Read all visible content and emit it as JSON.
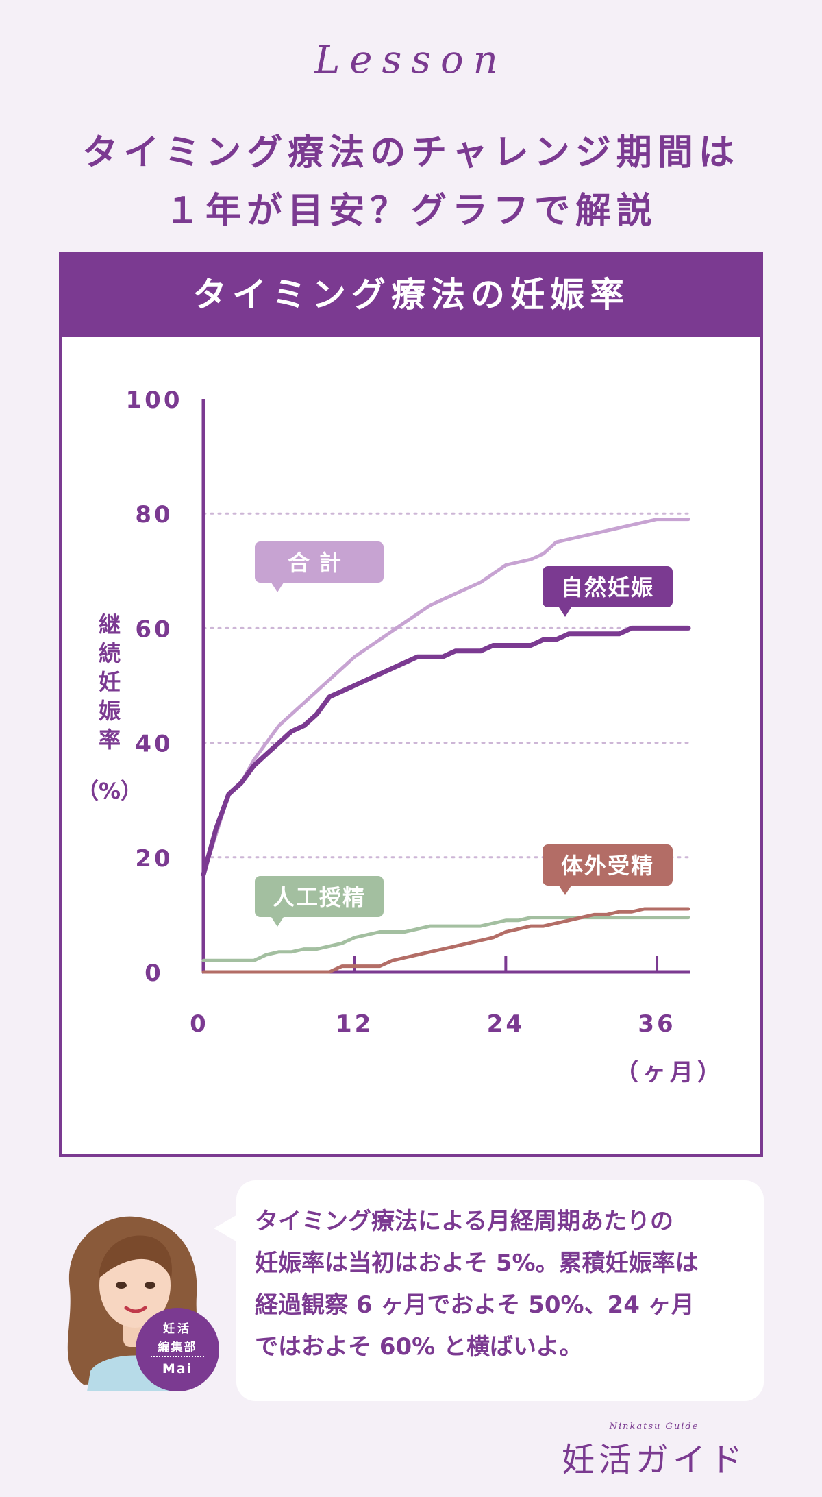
{
  "header": {
    "lesson": "Lesson",
    "title_line1": "タイミング療法のチャレンジ期間は",
    "title_line2": "１年が目安？グラフで解説"
  },
  "chart_data": {
    "type": "line",
    "title": "タイミング療法の妊娠率",
    "ylabel": "継続妊娠率",
    "ylabel_unit": "（%）",
    "xlabel": "（ヶ月）",
    "xlim": [
      0,
      38.5
    ],
    "ylim": [
      0,
      100
    ],
    "x_ticks": [
      0,
      12,
      24,
      36
    ],
    "y_ticks": [
      0,
      20,
      40,
      60,
      80,
      100
    ],
    "grid": "dotted horizontal at 20, 40, 60, 80",
    "series": [
      {
        "name": "合計",
        "color": "#c7a3d2",
        "points": [
          [
            0,
            17
          ],
          [
            1,
            24
          ],
          [
            2,
            31
          ],
          [
            3,
            33
          ],
          [
            4,
            37
          ],
          [
            5,
            40
          ],
          [
            6,
            43
          ],
          [
            8,
            47
          ],
          [
            10,
            51
          ],
          [
            12,
            55
          ],
          [
            14,
            58
          ],
          [
            16,
            61
          ],
          [
            18,
            64
          ],
          [
            20,
            66
          ],
          [
            22,
            68
          ],
          [
            24,
            71
          ],
          [
            26,
            72
          ],
          [
            27,
            73
          ],
          [
            28,
            75
          ],
          [
            30,
            76
          ],
          [
            32,
            77
          ],
          [
            34,
            78
          ],
          [
            36,
            79
          ],
          [
            37,
            79
          ],
          [
            38.5,
            79
          ]
        ]
      },
      {
        "name": "自然妊娠",
        "color": "#7b3a91",
        "points": [
          [
            0,
            17
          ],
          [
            1,
            25
          ],
          [
            2,
            31
          ],
          [
            3,
            33
          ],
          [
            4,
            36
          ],
          [
            5,
            38
          ],
          [
            6,
            40
          ],
          [
            7,
            42
          ],
          [
            8,
            43
          ],
          [
            9,
            45
          ],
          [
            10,
            48
          ],
          [
            11,
            49
          ],
          [
            12,
            50
          ],
          [
            13,
            51
          ],
          [
            14,
            52
          ],
          [
            15,
            53
          ],
          [
            16,
            54
          ],
          [
            17,
            55
          ],
          [
            18,
            55
          ],
          [
            19,
            55
          ],
          [
            20,
            56
          ],
          [
            21,
            56
          ],
          [
            22,
            56
          ],
          [
            23,
            57
          ],
          [
            24,
            57
          ],
          [
            25,
            57
          ],
          [
            26,
            57
          ],
          [
            27,
            58
          ],
          [
            28,
            58
          ],
          [
            29,
            59
          ],
          [
            30,
            59
          ],
          [
            31,
            59
          ],
          [
            32,
            59
          ],
          [
            33,
            59
          ],
          [
            34,
            60
          ],
          [
            35,
            60
          ],
          [
            36,
            60
          ],
          [
            37,
            60
          ],
          [
            38.5,
            60
          ]
        ]
      },
      {
        "name": "人工授精",
        "color": "#a3bfa0",
        "points": [
          [
            0,
            2
          ],
          [
            2,
            2
          ],
          [
            4,
            2
          ],
          [
            5,
            3
          ],
          [
            6,
            3.5
          ],
          [
            7,
            3.5
          ],
          [
            8,
            4
          ],
          [
            9,
            4
          ],
          [
            10,
            4.5
          ],
          [
            11,
            5
          ],
          [
            12,
            6
          ],
          [
            13,
            6.5
          ],
          [
            14,
            7
          ],
          [
            15,
            7
          ],
          [
            16,
            7
          ],
          [
            17,
            7.5
          ],
          [
            18,
            8
          ],
          [
            20,
            8
          ],
          [
            22,
            8
          ],
          [
            23,
            8.5
          ],
          [
            24,
            9
          ],
          [
            25,
            9
          ],
          [
            26,
            9.5
          ],
          [
            28,
            9.5
          ],
          [
            30,
            9.5
          ],
          [
            32,
            9.5
          ],
          [
            34,
            9.5
          ],
          [
            36,
            9.5
          ],
          [
            38.5,
            9.5
          ]
        ]
      },
      {
        "name": "体外受精",
        "color": "#b36d66",
        "points": [
          [
            0,
            0
          ],
          [
            2,
            0
          ],
          [
            4,
            0
          ],
          [
            6,
            0
          ],
          [
            8,
            0
          ],
          [
            10,
            0
          ],
          [
            11,
            1
          ],
          [
            12,
            1
          ],
          [
            13,
            1
          ],
          [
            14,
            1
          ],
          [
            15,
            2
          ],
          [
            16,
            2.5
          ],
          [
            17,
            3
          ],
          [
            18,
            3.5
          ],
          [
            19,
            4
          ],
          [
            20,
            4.5
          ],
          [
            21,
            5
          ],
          [
            22,
            5.5
          ],
          [
            23,
            6
          ],
          [
            24,
            7
          ],
          [
            25,
            7.5
          ],
          [
            26,
            8
          ],
          [
            27,
            8
          ],
          [
            28,
            8.5
          ],
          [
            29,
            9
          ],
          [
            30,
            9.5
          ],
          [
            31,
            10
          ],
          [
            32,
            10
          ],
          [
            33,
            10.5
          ],
          [
            34,
            10.5
          ],
          [
            35,
            11
          ],
          [
            36,
            11
          ],
          [
            37,
            11
          ],
          [
            38.5,
            11
          ]
        ]
      }
    ]
  },
  "comment": {
    "line1": "タイミング療法による月経周期あたりの",
    "line2": "妊娠率は当初はおよそ 5%。累積妊娠率は",
    "line3": "経過観察 6 ヶ月でおよそ 50%、24 ヶ月",
    "line4": "ではおよそ 60% と横ばいよ。"
  },
  "author": {
    "org_line1": "妊活",
    "org_line2": "編集部",
    "name": "Mai"
  },
  "brand": {
    "subtitle": "Ninkatsu Guide",
    "name": "妊活ガイド"
  }
}
